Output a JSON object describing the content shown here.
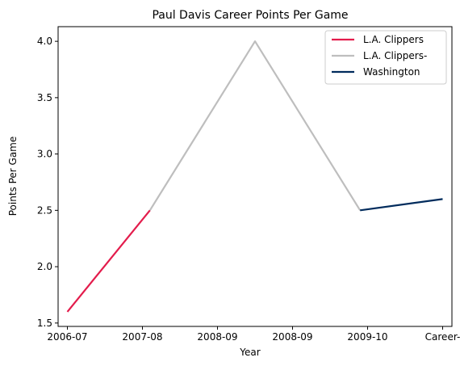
{
  "chart_data": {
    "type": "line",
    "title": "Paul Davis  Career Points Per Game",
    "xlabel": "Year",
    "ylabel": "Points Per Game",
    "categories": [
      "2006-07",
      "2007-08",
      "2008-09",
      "2008-09",
      "2009-10",
      "Career-"
    ],
    "ylim": [
      1.47,
      4.13
    ],
    "yticks": [
      1.5,
      2.0,
      2.5,
      3.0,
      3.5,
      4.0
    ],
    "ytick_labels": [
      "1.5",
      "2.0",
      "2.5",
      "3.0",
      "3.5",
      "4.0"
    ],
    "grid": false,
    "legend_position": "top-right",
    "series": [
      {
        "name": "L.A. Clippers",
        "color": "#E31C4C",
        "points": [
          {
            "x": 0,
            "y": 1.6
          },
          {
            "x": 1.1,
            "y": 2.5
          }
        ]
      },
      {
        "name": "L.A. Clippers-",
        "color": "#BEBEBE",
        "points": [
          {
            "x": 1.1,
            "y": 2.5
          },
          {
            "x": 2.5,
            "y": 4.0
          },
          {
            "x": 3.9,
            "y": 2.5
          }
        ]
      },
      {
        "name": "Washington",
        "color": "#002B5C",
        "points": [
          {
            "x": 3.9,
            "y": 2.5
          },
          {
            "x": 5,
            "y": 2.6
          }
        ]
      }
    ]
  }
}
